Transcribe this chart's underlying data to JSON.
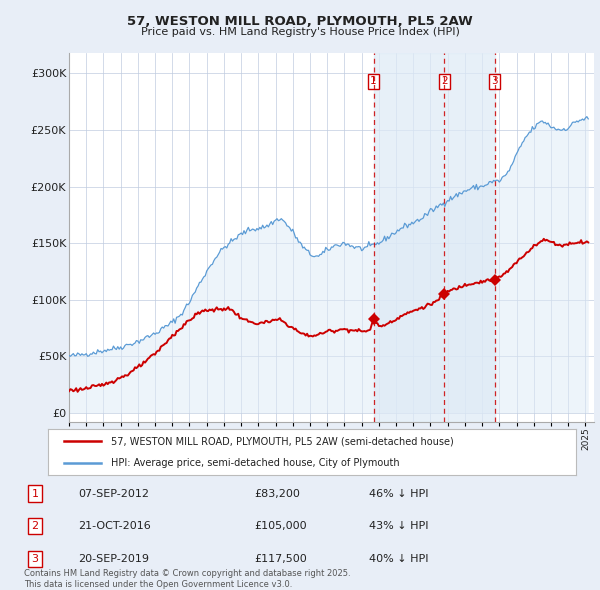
{
  "title": "57, WESTON MILL ROAD, PLYMOUTH, PL5 2AW",
  "subtitle": "Price paid vs. HM Land Registry's House Price Index (HPI)",
  "yticks": [
    0,
    50000,
    100000,
    150000,
    200000,
    250000,
    300000
  ],
  "ytick_labels": [
    "£0",
    "£50K",
    "£100K",
    "£150K",
    "£200K",
    "£250K",
    "£300K"
  ],
  "ylim": [
    -8000,
    318000
  ],
  "xlim": [
    1995,
    2025.5
  ],
  "legend_line1": "57, WESTON MILL ROAD, PLYMOUTH, PL5 2AW (semi-detached house)",
  "legend_line2": "HPI: Average price, semi-detached house, City of Plymouth",
  "transactions": [
    {
      "label": "1",
      "date": "07-SEP-2012",
      "price": 83200,
      "pct": "46%",
      "direction": "↓",
      "x": 2012.69
    },
    {
      "label": "2",
      "date": "21-OCT-2016",
      "price": 105000,
      "pct": "43%",
      "direction": "↓",
      "x": 2016.81
    },
    {
      "label": "3",
      "date": "20-SEP-2019",
      "price": 117500,
      "pct": "40%",
      "direction": "↓",
      "x": 2019.72
    }
  ],
  "footer": "Contains HM Land Registry data © Crown copyright and database right 2025.\nThis data is licensed under the Open Government Licence v3.0.",
  "red_color": "#cc0000",
  "blue_line_color": "#5b9bd5",
  "blue_fill_color": "#ddeaf6",
  "shade_color": "#ddeaf6",
  "background_color": "#e8eef7",
  "plot_bg": "#ffffff",
  "grid_color": "#c0cce0",
  "title_color": "#222222",
  "label_color": "#222222"
}
